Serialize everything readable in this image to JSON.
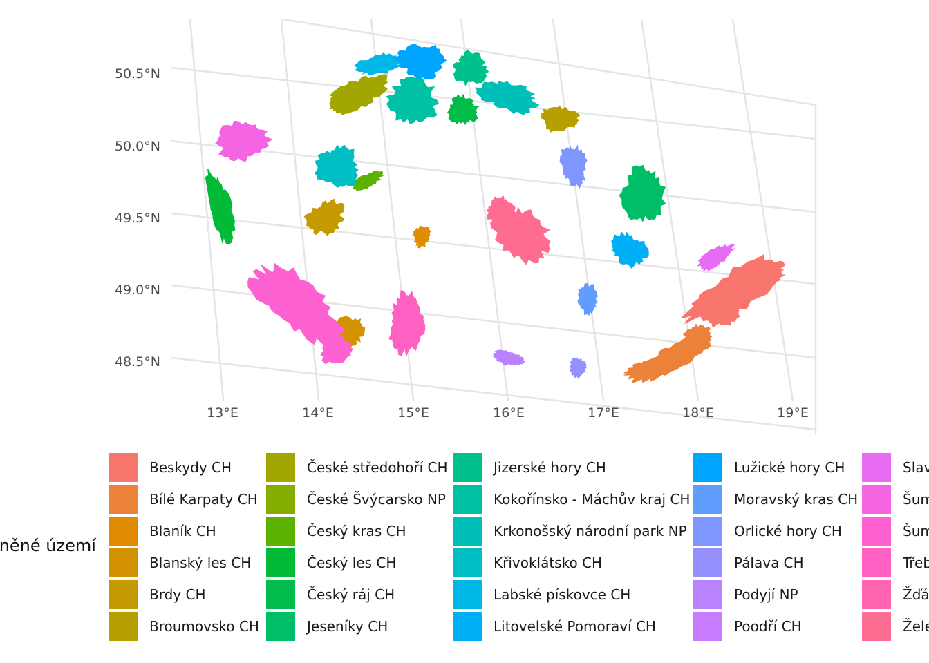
{
  "map": {
    "lat_labels": [
      "50.5°N",
      "50.0°N",
      "49.5°N",
      "49.0°N",
      "48.5°N"
    ],
    "lon_labels": [
      "13°E",
      "14°E",
      "15°E",
      "16°E",
      "17°E",
      "18°E",
      "19°E"
    ],
    "grid_color": "#e5e5e5",
    "regions": [
      {
        "name": "Beskydy CH",
        "color": "#F8766D"
      },
      {
        "name": "Bílé Karpaty CH",
        "color": "#EC8239"
      },
      {
        "name": "Blaník CH",
        "color": "#E08B00"
      },
      {
        "name": "Blanský les CH",
        "color": "#D39200"
      },
      {
        "name": "Brdy CH",
        "color": "#C49A00"
      },
      {
        "name": "Broumovsko CH",
        "color": "#B79F00"
      },
      {
        "name": "České středohoří CH",
        "color": "#A3A500"
      },
      {
        "name": "České Švýcarsko NP",
        "color": "#85AD00"
      },
      {
        "name": "Český kras CH",
        "color": "#5BB300"
      },
      {
        "name": "Český les CH",
        "color": "#00BA38"
      },
      {
        "name": "Český ráj CH",
        "color": "#00BC4B"
      },
      {
        "name": "Jeseníky CH",
        "color": "#00BE67"
      },
      {
        "name": "Jizerské hory CH",
        "color": "#00C08B"
      },
      {
        "name": "Kokořínsko - Máchův kraj CH",
        "color": "#00C1A3"
      },
      {
        "name": "Krkonošský národní park NP",
        "color": "#00BFB9"
      },
      {
        "name": "Křivoklátsko CH",
        "color": "#00BFC4"
      },
      {
        "name": "Labské pískovce CH",
        "color": "#00B8E7"
      },
      {
        "name": "Litovelské Pomoraví CH",
        "color": "#00B0F6"
      },
      {
        "name": "Lužické hory CH",
        "color": "#00A5FF"
      },
      {
        "name": "Moravský kras CH",
        "color": "#619CFF"
      },
      {
        "name": "Orlické hory CH",
        "color": "#7F96FF"
      },
      {
        "name": "Pálava CH",
        "color": "#9590FF"
      },
      {
        "name": "Podyjí NP",
        "color": "#B983FF"
      },
      {
        "name": "Poodří CH",
        "color": "#C77CFF"
      },
      {
        "name": "Slav",
        "color": "#E76BF3"
      },
      {
        "name": "Šum",
        "color": "#F564E3"
      },
      {
        "name": "Šum",
        "color": "#FD61D1"
      },
      {
        "name": "Třeb",
        "color": "#FF61C3"
      },
      {
        "name": "Žďár",
        "color": "#FF64B0"
      },
      {
        "name": "Žele",
        "color": "#FF6C91"
      }
    ]
  },
  "legend": {
    "title": "aněné území"
  }
}
